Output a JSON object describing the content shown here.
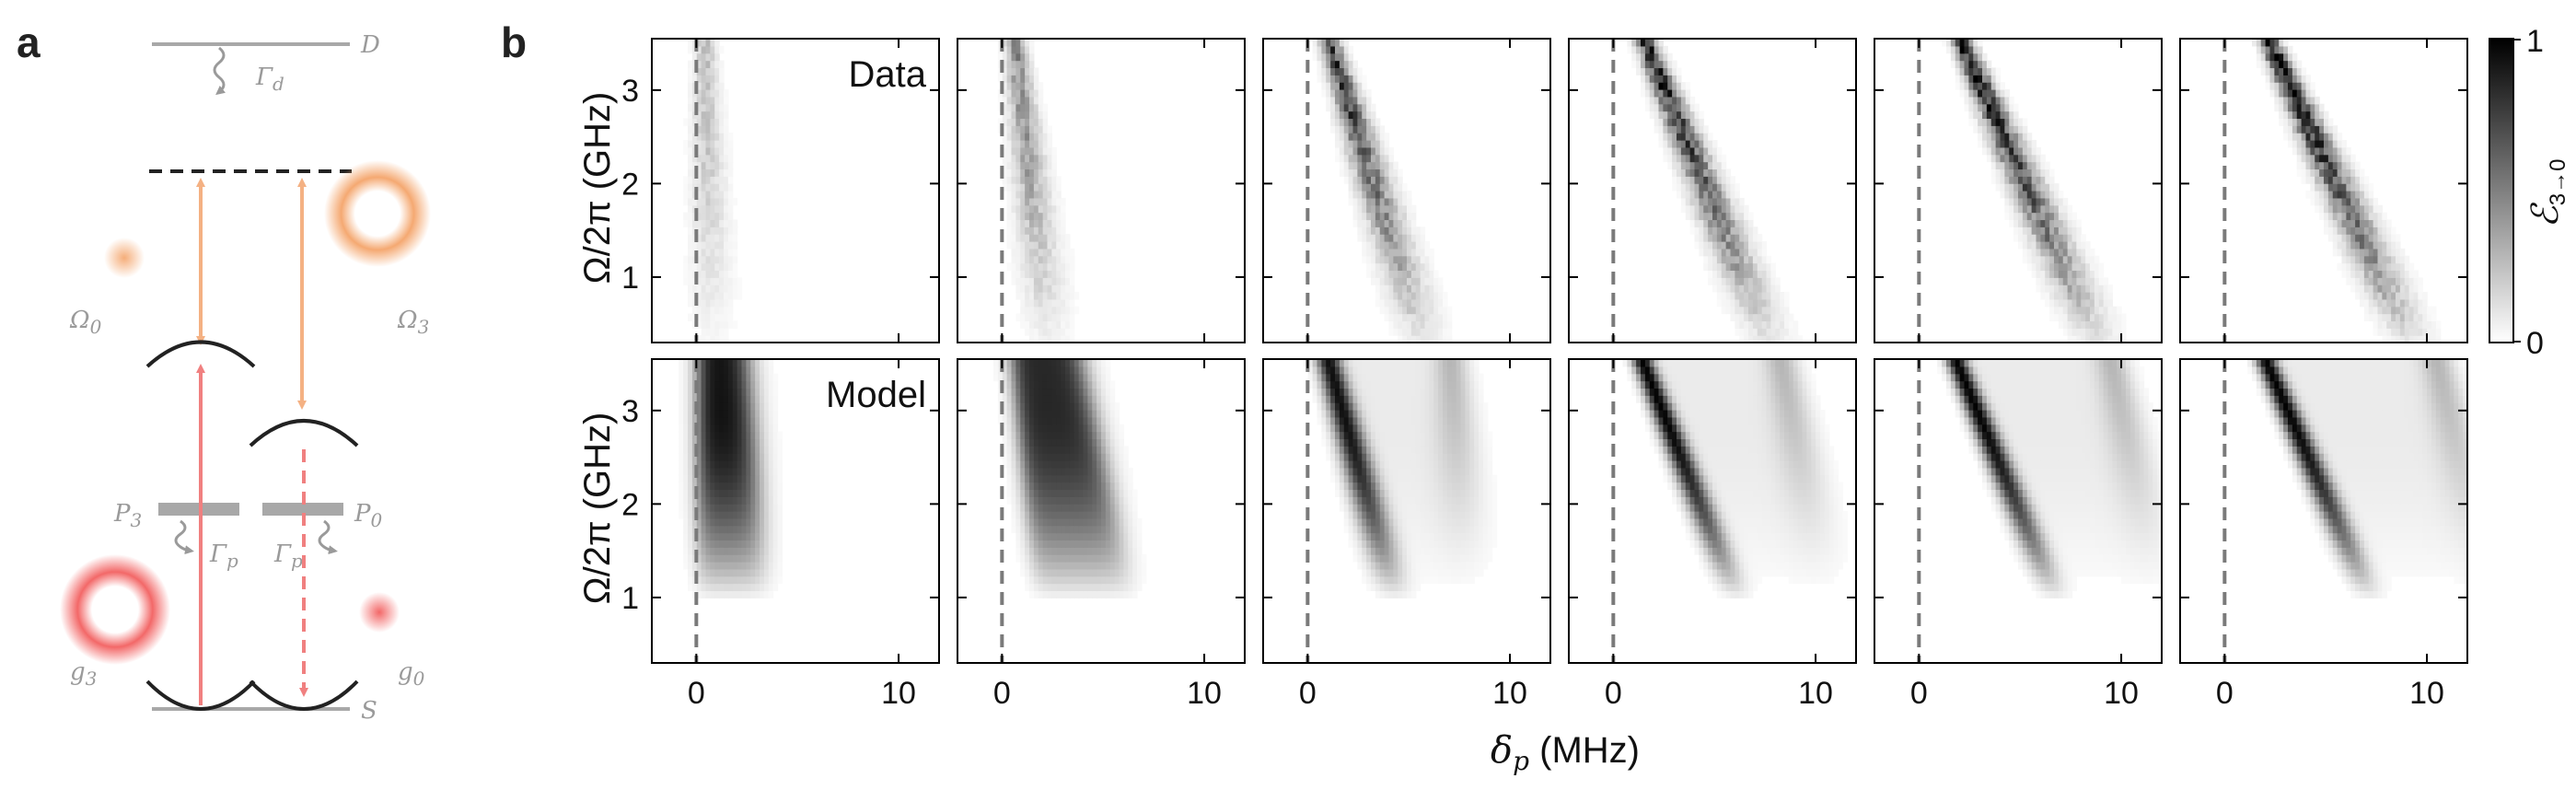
{
  "panels": {
    "a": {
      "label": "a",
      "levels": {
        "D": "D",
        "S": "S",
        "P3": "P",
        "P3_sub": "3",
        "P0": "P",
        "P0_sub": "0"
      },
      "decay": {
        "Gamma_d": "Γ",
        "Gamma_d_sub": "d",
        "Gamma_p": "Γ",
        "Gamma_p_sub": "p"
      },
      "beams": {
        "Omega0": "Ω",
        "Omega0_sub": "0",
        "Omega3": "Ω",
        "Omega3_sub": "3",
        "g3": "g",
        "g3_sub": "3",
        "g0": "g",
        "g0_sub": "0"
      },
      "colors": {
        "level": "#a8a8a8",
        "coupling": "#f4b183",
        "probe": "#f08080",
        "beam_orange": "#f4a46a",
        "beam_red": "#f26060"
      }
    },
    "b": {
      "label": "b"
    }
  },
  "chart_data": {
    "type": "heatmap",
    "layout": "2 rows x 6 columns",
    "rows": [
      "Data",
      "Model"
    ],
    "ylabel": "Ω/2π (GHz)",
    "xlabel": "δp (MHz)",
    "xlabel_main": "δ",
    "xlabel_sub": "p",
    "xlabel_unit": " (MHz)",
    "xticks": [
      0,
      10
    ],
    "yticks": [
      1,
      2,
      3
    ],
    "xlim": [
      -2.2,
      12
    ],
    "ylim": [
      0.3,
      3.55
    ],
    "reference_line_x": 0,
    "colorbar": {
      "label": "ℰ",
      "label_sub": "3→0",
      "min": 0,
      "max": 1,
      "tick_labels": [
        "1",
        "0"
      ],
      "colormap": "white-to-black"
    },
    "columns": [
      {
        "data": {
          "x0": 0.4,
          "k": 0.05,
          "amp": 0.25
        },
        "model": {
          "x0": 0.5,
          "k": 0.0,
          "amp": 0.95,
          "width": 1.0
        }
      },
      {
        "data": {
          "x0": 0.6,
          "k": 0.5,
          "amp": 0.45
        },
        "model": {
          "x0": 0.9,
          "k": 0.5,
          "amp": 0.85,
          "width": 1.5
        }
      },
      {
        "data": {
          "x0": 1.0,
          "k": 1.5,
          "amp": 0.75
        },
        "model": {
          "x0": 1.0,
          "k": 1.4,
          "amp": 0.9,
          "width": 0.6
        }
      },
      {
        "data": {
          "x0": 1.5,
          "k": 2.0,
          "amp": 0.85
        },
        "model": {
          "x0": 1.4,
          "k": 2.0,
          "amp": 0.95,
          "width": 0.5
        }
      },
      {
        "data": {
          "x0": 2.0,
          "k": 2.2,
          "amp": 0.9
        },
        "model": {
          "x0": 1.8,
          "k": 2.1,
          "amp": 0.95,
          "width": 0.5
        }
      },
      {
        "data": {
          "x0": 2.1,
          "k": 2.3,
          "amp": 0.95
        },
        "model": {
          "x0": 2.0,
          "k": 2.2,
          "amp": 0.95,
          "width": 0.5
        }
      }
    ]
  }
}
